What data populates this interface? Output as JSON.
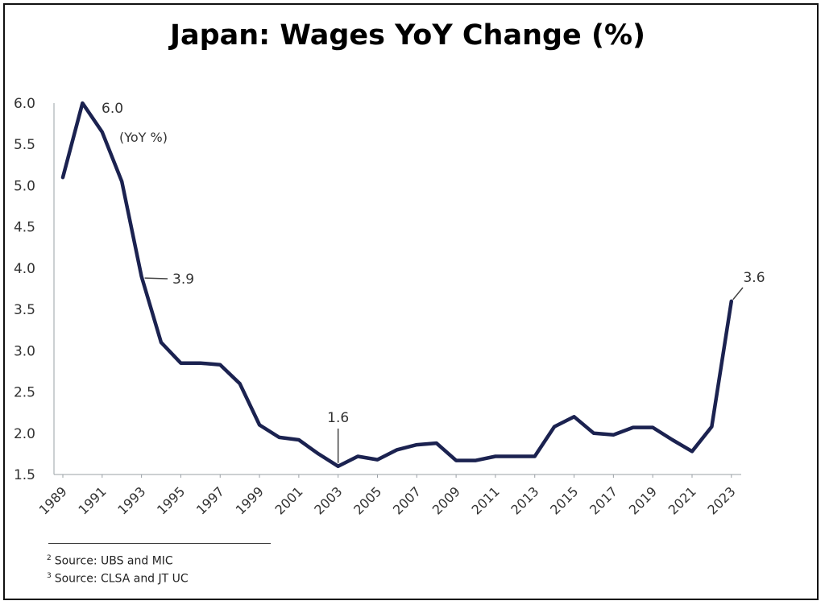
{
  "chart_data": {
    "type": "line",
    "title": "Japan: Wages YoY Change (%)",
    "xlabel": "",
    "ylabel": "",
    "ylim": [
      1.5,
      6.0
    ],
    "yticks": [
      "6.0",
      "5.5",
      "5.0",
      "4.5",
      "4.0",
      "3.5",
      "3.0",
      "2.5",
      "2.0",
      "1.5"
    ],
    "xticks": [
      "1989",
      "1991",
      "1993",
      "1995",
      "1997",
      "1999",
      "2001",
      "2003",
      "2005",
      "2007",
      "2009",
      "2011",
      "2013",
      "2015",
      "2017",
      "2019",
      "2021",
      "2023"
    ],
    "unit_note": "(YoY %)",
    "grid": false,
    "series": [
      {
        "x": [
          1989,
          1990,
          1991,
          1992,
          1993,
          1994,
          1995,
          1996,
          1997,
          1998,
          1999,
          2000,
          2001,
          2002,
          2003,
          2004,
          2005,
          2006,
          2007,
          2008,
          2009,
          2010,
          2011,
          2012,
          2013,
          2014,
          2015,
          2016,
          2017,
          2018,
          2019,
          2020,
          2021,
          2022,
          2023
        ],
        "values": [
          5.1,
          6.0,
          5.65,
          5.05,
          3.9,
          3.1,
          2.85,
          2.85,
          2.83,
          2.6,
          2.1,
          1.95,
          1.92,
          1.75,
          1.6,
          1.72,
          1.68,
          1.8,
          1.86,
          1.88,
          1.67,
          1.67,
          1.72,
          1.72,
          1.72,
          2.08,
          2.2,
          2.0,
          1.98,
          2.07,
          2.07,
          1.92,
          1.78,
          2.08,
          3.6
        ]
      }
    ],
    "annotations": [
      {
        "text": "6.0",
        "x": 1990,
        "y": 6.0
      },
      {
        "text": "3.9",
        "x": 1993,
        "y": 3.9
      },
      {
        "text": "1.6",
        "x": 2003,
        "y": 1.6
      },
      {
        "text": "3.6",
        "x": 2023,
        "y": 3.6
      }
    ]
  },
  "footnotes": [
    {
      "mark": "2",
      "text": "Source: UBS and MIC"
    },
    {
      "mark": "3",
      "text": "Source: CLSA and JT UC"
    }
  ]
}
